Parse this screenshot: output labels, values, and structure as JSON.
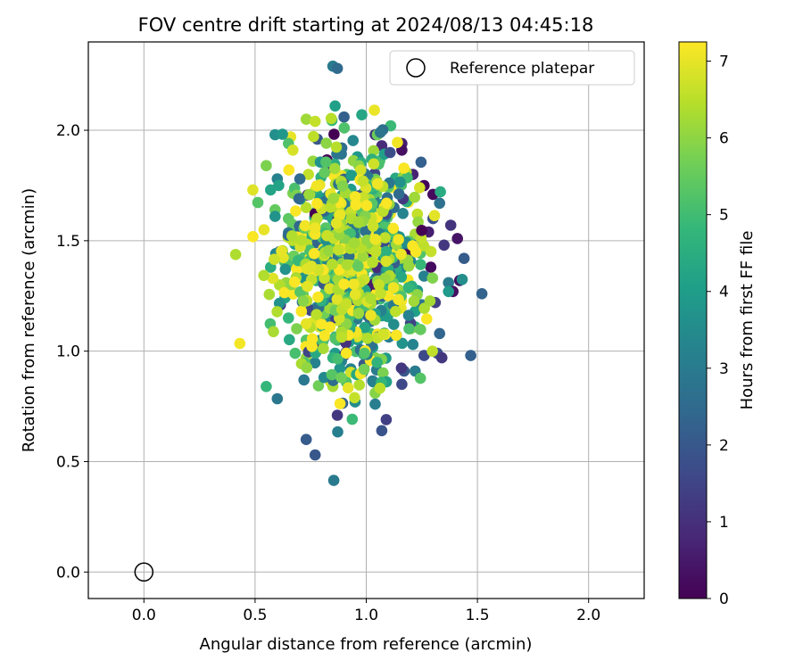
{
  "chart_data": {
    "type": "scatter",
    "title": "FOV centre drift starting at 2024/08/13 04:45:18",
    "xlabel": "Angular distance from reference (arcmin)",
    "ylabel": "Rotation from reference (arcmin)",
    "xlim": [
      -0.25,
      2.25
    ],
    "ylim": [
      -0.12,
      2.4
    ],
    "xticks": [
      0.0,
      0.5,
      1.0,
      1.5,
      2.0
    ],
    "yticks": [
      0.0,
      0.5,
      1.0,
      1.5,
      2.0
    ],
    "grid": true,
    "legend": {
      "position": "top-right",
      "entries": [
        "Reference platepar"
      ]
    },
    "reference_point": {
      "x": 0.0,
      "y": 0.0,
      "label": "Reference platepar"
    },
    "colorbar": {
      "label": "Hours from first FF file",
      "min": 0,
      "max": 7.25,
      "ticks": [
        0,
        1,
        2,
        3,
        4,
        5,
        6,
        7
      ],
      "colormap": "viridis"
    },
    "colormap_stops": [
      "#440154",
      "#482878",
      "#3e4989",
      "#31688e",
      "#26828e",
      "#1f9e89",
      "#35b779",
      "#6ece58",
      "#b5de2b",
      "#fde725"
    ],
    "points": [
      {
        "x": 0.85,
        "y": 2.29,
        "c": 3.0
      },
      {
        "x": 0.87,
        "y": 2.28,
        "c": 2.5
      },
      {
        "x": 0.86,
        "y": 2.11,
        "c": 4.1
      },
      {
        "x": 0.9,
        "y": 2.06,
        "c": 2.2
      },
      {
        "x": 0.73,
        "y": 2.05,
        "c": 6.2
      },
      {
        "x": 0.77,
        "y": 2.04,
        "c": 6.6
      },
      {
        "x": 0.98,
        "y": 2.07,
        "c": 4.3
      },
      {
        "x": 1.11,
        "y": 2.02,
        "c": 4.9
      },
      {
        "x": 0.59,
        "y": 1.98,
        "c": 3.6
      },
      {
        "x": 1.04,
        "y": 1.98,
        "c": 1.1
      },
      {
        "x": 1.05,
        "y": 1.98,
        "c": 5.6
      },
      {
        "x": 0.66,
        "y": 1.97,
        "c": 7.0
      },
      {
        "x": 0.78,
        "y": 1.96,
        "c": 2.0
      },
      {
        "x": 1.16,
        "y": 1.94,
        "c": 0.6
      },
      {
        "x": 0.65,
        "y": 1.94,
        "c": 5.2
      },
      {
        "x": 1.07,
        "y": 1.93,
        "c": 0.9
      },
      {
        "x": 0.89,
        "y": 1.92,
        "c": 2.6
      },
      {
        "x": 0.67,
        "y": 1.91,
        "c": 6.8
      },
      {
        "x": 1.16,
        "y": 1.91,
        "c": 0.3
      },
      {
        "x": 0.96,
        "y": 1.88,
        "c": 3.9
      },
      {
        "x": 0.76,
        "y": 1.86,
        "c": 6.1
      },
      {
        "x": 0.55,
        "y": 1.84,
        "c": 5.8
      },
      {
        "x": 1.21,
        "y": 1.8,
        "c": 0.7
      },
      {
        "x": 0.74,
        "y": 1.8,
        "c": 6.6
      },
      {
        "x": 0.6,
        "y": 1.78,
        "c": 3.2
      },
      {
        "x": 1.26,
        "y": 1.75,
        "c": 0.1
      },
      {
        "x": 0.49,
        "y": 1.73,
        "c": 6.9
      },
      {
        "x": 1.24,
        "y": 1.74,
        "c": 6.8
      },
      {
        "x": 1.3,
        "y": 1.71,
        "c": 0.2
      },
      {
        "x": 0.57,
        "y": 1.73,
        "c": 4.2
      },
      {
        "x": 1.33,
        "y": 1.67,
        "c": 2.7
      },
      {
        "x": 0.73,
        "y": 1.65,
        "c": 6.5
      },
      {
        "x": 0.59,
        "y": 1.64,
        "c": 5.5
      },
      {
        "x": 1.23,
        "y": 1.62,
        "c": 6.6
      },
      {
        "x": 0.59,
        "y": 1.61,
        "c": 3.7
      },
      {
        "x": 1.3,
        "y": 1.6,
        "c": 1.8
      },
      {
        "x": 0.65,
        "y": 1.6,
        "c": 5.4
      },
      {
        "x": 1.38,
        "y": 1.57,
        "c": 1.1
      },
      {
        "x": 0.54,
        "y": 1.55,
        "c": 7.0
      },
      {
        "x": 1.28,
        "y": 1.54,
        "c": 0.6
      },
      {
        "x": 1.22,
        "y": 1.53,
        "c": 6.3
      },
      {
        "x": 0.66,
        "y": 1.52,
        "c": 5.0
      },
      {
        "x": 1.41,
        "y": 1.51,
        "c": 0.4
      },
      {
        "x": 1.35,
        "y": 1.48,
        "c": 1.2
      },
      {
        "x": 1.26,
        "y": 1.47,
        "c": 1.0
      },
      {
        "x": 0.61,
        "y": 1.45,
        "c": 2.5
      },
      {
        "x": 1.19,
        "y": 1.44,
        "c": 4.0
      },
      {
        "x": 1.44,
        "y": 1.42,
        "c": 2.1
      },
      {
        "x": 0.63,
        "y": 1.43,
        "c": 5.4
      },
      {
        "x": 1.29,
        "y": 1.38,
        "c": 0.2
      },
      {
        "x": 1.16,
        "y": 1.4,
        "c": 4.6
      },
      {
        "x": 0.57,
        "y": 1.38,
        "c": 4.5
      },
      {
        "x": 1.42,
        "y": 1.32,
        "c": 0.3
      },
      {
        "x": 1.37,
        "y": 1.31,
        "c": 3.0
      },
      {
        "x": 0.64,
        "y": 1.31,
        "c": 6.1
      },
      {
        "x": 0.61,
        "y": 1.3,
        "c": 6.4
      },
      {
        "x": 1.26,
        "y": 1.34,
        "c": 3.2
      },
      {
        "x": 0.58,
        "y": 1.33,
        "c": 6.9
      },
      {
        "x": 1.39,
        "y": 1.27,
        "c": 0.3
      },
      {
        "x": 1.37,
        "y": 1.27,
        "c": 3.9
      },
      {
        "x": 1.52,
        "y": 1.26,
        "c": 2.3
      },
      {
        "x": 0.67,
        "y": 1.26,
        "c": 5.3
      },
      {
        "x": 1.2,
        "y": 1.28,
        "c": 6.8
      },
      {
        "x": 1.25,
        "y": 1.21,
        "c": 2.8
      },
      {
        "x": 1.31,
        "y": 1.22,
        "c": 1.4
      },
      {
        "x": 0.72,
        "y": 1.21,
        "c": 6.2
      },
      {
        "x": 1.22,
        "y": 1.18,
        "c": 4.1
      },
      {
        "x": 0.65,
        "y": 1.15,
        "c": 4.8
      },
      {
        "x": 1.07,
        "y": 1.16,
        "c": 4.0
      },
      {
        "x": 1.22,
        "y": 1.11,
        "c": 4.6
      },
      {
        "x": 0.79,
        "y": 1.11,
        "c": 6.7
      },
      {
        "x": 1.33,
        "y": 1.08,
        "c": 2.4
      },
      {
        "x": 0.73,
        "y": 1.05,
        "c": 5.3
      },
      {
        "x": 1.0,
        "y": 1.07,
        "c": 6.0
      },
      {
        "x": 0.96,
        "y": 1.06,
        "c": 1.5
      },
      {
        "x": 0.87,
        "y": 1.05,
        "c": 4.9
      },
      {
        "x": 1.21,
        "y": 1.03,
        "c": 3.3
      },
      {
        "x": 0.68,
        "y": 0.99,
        "c": 5.1
      },
      {
        "x": 0.73,
        "y": 0.97,
        "c": 6.1
      },
      {
        "x": 0.86,
        "y": 0.99,
        "c": 3.9
      },
      {
        "x": 0.9,
        "y": 0.98,
        "c": 1.2
      },
      {
        "x": 0.85,
        "y": 0.97,
        "c": 4.7
      },
      {
        "x": 1.04,
        "y": 0.97,
        "c": 5.8
      },
      {
        "x": 1.32,
        "y": 0.99,
        "c": 1.8
      },
      {
        "x": 1.34,
        "y": 0.97,
        "c": 1.2
      },
      {
        "x": 1.26,
        "y": 0.98,
        "c": 1.6
      },
      {
        "x": 1.47,
        "y": 0.98,
        "c": 2.2
      },
      {
        "x": 0.99,
        "y": 0.94,
        "c": 2.0
      },
      {
        "x": 0.93,
        "y": 0.92,
        "c": 3.2
      },
      {
        "x": 1.17,
        "y": 0.91,
        "c": 2.0
      },
      {
        "x": 1.22,
        "y": 0.91,
        "c": 3.0
      },
      {
        "x": 0.72,
        "y": 0.87,
        "c": 2.9
      },
      {
        "x": 0.84,
        "y": 0.86,
        "c": 6.8
      },
      {
        "x": 0.85,
        "y": 0.84,
        "c": 6.3
      },
      {
        "x": 0.91,
        "y": 0.86,
        "c": 5.2
      },
      {
        "x": 1.16,
        "y": 0.85,
        "c": 1.6
      },
      {
        "x": 0.55,
        "y": 0.84,
        "c": 4.8
      },
      {
        "x": 1.04,
        "y": 0.81,
        "c": 5.9
      },
      {
        "x": 0.95,
        "y": 0.77,
        "c": 3.5
      },
      {
        "x": 1.04,
        "y": 0.76,
        "c": 3.1
      },
      {
        "x": 0.87,
        "y": 0.71,
        "c": 1.2
      },
      {
        "x": 1.09,
        "y": 0.69,
        "c": 1.4
      },
      {
        "x": 1.07,
        "y": 0.64,
        "c": 1.9
      },
      {
        "x": 0.73,
        "y": 0.6,
        "c": 2.1
      },
      {
        "x": 0.77,
        "y": 0.53,
        "c": 2.0
      }
    ],
    "cluster": {
      "x_center": 0.94,
      "y_center": 1.42,
      "x_spread": 0.15,
      "y_spread": 0.25,
      "count": 700,
      "color_mean": 4.5,
      "color_spread": 1.8,
      "overlay_count": 170,
      "overlay_color_mean": 6.6,
      "overlay_color_spread": 0.45
    }
  }
}
